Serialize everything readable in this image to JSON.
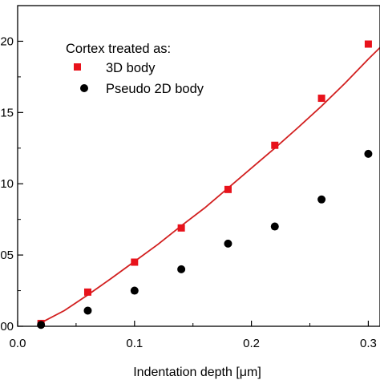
{
  "chart_data": {
    "type": "scatter",
    "xlabel": "Indentation depth [μm]",
    "ylabel": "",
    "xlim": [
      0.0,
      0.31
    ],
    "ylim": [
      0.0,
      0.225
    ],
    "x_ticks": [
      0.0,
      0.1,
      0.2,
      0.3
    ],
    "x_tick_labels": [
      "0.0",
      "0.1",
      "0.2",
      "0.3"
    ],
    "y_ticks": [
      0.0,
      0.05,
      0.1,
      0.15,
      0.2
    ],
    "y_tick_labels": [
      "00",
      "05",
      "10",
      "15",
      "20"
    ],
    "x_minor_ticks": [
      0.05,
      0.15,
      0.25
    ],
    "y_minor_ticks": [
      0.025,
      0.075,
      0.125,
      0.175
    ],
    "legend": {
      "title": "Cortex treated as:",
      "placement": "top-center"
    },
    "series": [
      {
        "name": "3D body",
        "marker": "square",
        "color": "#e8121b",
        "x": [
          0.02,
          0.06,
          0.1,
          0.14,
          0.18,
          0.22,
          0.26,
          0.3
        ],
        "y": [
          0.002,
          0.024,
          0.045,
          0.069,
          0.096,
          0.127,
          0.16,
          0.198
        ]
      },
      {
        "name": "Pseudo 2D body",
        "marker": "circle",
        "color": "#000000",
        "x": [
          0.02,
          0.06,
          0.1,
          0.14,
          0.18,
          0.22,
          0.26,
          0.3
        ],
        "y": [
          0.001,
          0.011,
          0.025,
          0.04,
          0.058,
          0.07,
          0.089,
          0.121
        ]
      }
    ],
    "fit_line": {
      "color": "#d21f1f",
      "x": [
        0.02,
        0.04,
        0.06,
        0.08,
        0.1,
        0.12,
        0.14,
        0.16,
        0.18,
        0.2,
        0.22,
        0.24,
        0.26,
        0.28,
        0.3,
        0.31
      ],
      "y": [
        0.0025,
        0.011,
        0.022,
        0.0335,
        0.0455,
        0.0575,
        0.0705,
        0.083,
        0.097,
        0.111,
        0.125,
        0.1395,
        0.1545,
        0.1705,
        0.1875,
        0.1955
      ]
    }
  }
}
